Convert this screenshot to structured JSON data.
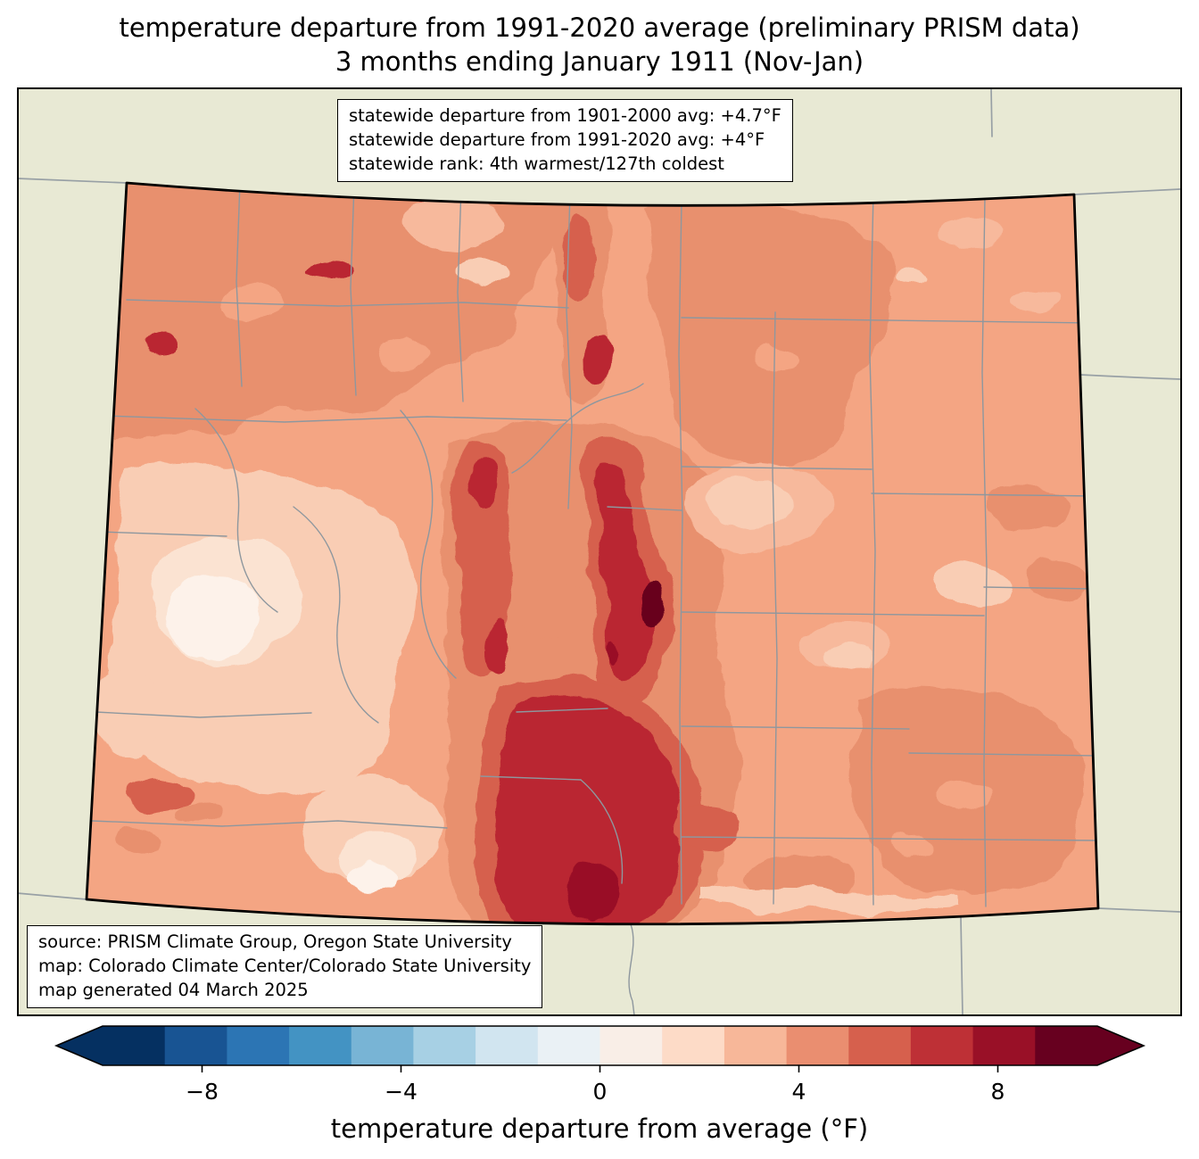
{
  "title": {
    "line1": "temperature departure from 1991-2020 average (preliminary PRISM data)",
    "line2": "3 months ending January 1911 (Nov-Jan)"
  },
  "stats_box": {
    "lines": [
      "statewide departure from 1901-2000 avg: +4.7°F",
      "statewide departure from 1991-2020 avg: +4°F",
      "statewide rank: 4th warmest/127th coldest"
    ]
  },
  "source_box": {
    "lines": [
      "source: PRISM Climate Group, Oregon State University",
      "map: Colorado Climate Center/Colorado State University",
      "map generated 04 March 2025"
    ]
  },
  "colorbar": {
    "label": "temperature departure from average (°F)",
    "ticks": [
      "−8",
      "−4",
      "0",
      "4",
      "8"
    ],
    "tick_values": [
      -8,
      -4,
      0,
      4,
      8
    ],
    "range": [
      -10,
      10
    ],
    "colors": [
      "#053061",
      "#185493",
      "#2c75b4",
      "#4393c3",
      "#78b4d5",
      "#a7d0e4",
      "#d1e5f0",
      "#eaf1f5",
      "#f9eee7",
      "#fddbc7",
      "#f7b799",
      "#ea8e70",
      "#d6604d",
      "#be3036",
      "#991027",
      "#67001f"
    ],
    "arrow_left_color": "#053061",
    "arrow_right_color": "#67001f"
  },
  "map": {
    "region": "Colorado",
    "background_color": "#e8e9d4",
    "state_border_color": "#000000",
    "county_border_color": "#8e979e",
    "dominant_anomaly_color": "#f4a583"
  },
  "chart_data": {
    "type": "heatmap",
    "title": "temperature departure from 1991-2020 average (preliminary PRISM data) — 3 months ending January 1911 (Nov-Jan)",
    "region": "Colorado",
    "period": "Nov-Jan ending January 1911",
    "units": "°F",
    "colorbar_label": "temperature departure from average (°F)",
    "colorbar_range": [
      -10,
      10
    ],
    "colorbar_ticks": [
      -8,
      -4,
      0,
      4,
      8
    ],
    "statewide_departure_from_1901_2000_avg_F": 4.7,
    "statewide_departure_from_1991_2020_avg_F": 4.0,
    "statewide_rank_warmest": 4,
    "statewide_rank_coldest": 127,
    "anomaly_pattern_summary": "Entire state positive (warm); strongest +6 to +9°F along central mountains/Front Range and south-central mountains, darkest spot east of center; mildest 0 to +2°F in west-central and southwest valleys; +3 to +5°F over northwest and eastern plains"
  }
}
